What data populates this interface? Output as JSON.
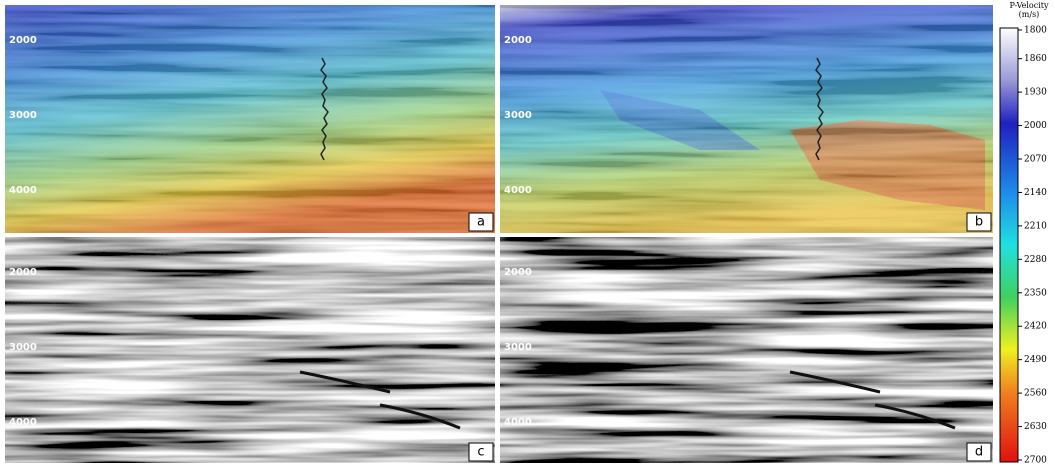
{
  "colorbar": {
    "title": "P-Velocity",
    "unit": "(m/s)",
    "ticks": [
      1800,
      1860,
      1930,
      2000,
      2070,
      2140,
      2210,
      2280,
      2350,
      2420,
      2490,
      2560,
      2630,
      2700
    ]
  },
  "panels": [
    {
      "label": "a",
      "depth_labels": [
        2000,
        3000,
        4000
      ]
    },
    {
      "label": "b",
      "depth_labels": [
        2000,
        3000,
        4000
      ]
    },
    {
      "label": "c",
      "depth_labels": [
        2000,
        3000,
        4000
      ]
    },
    {
      "label": "d",
      "depth_labels": [
        2000,
        3000,
        4000
      ]
    }
  ]
}
